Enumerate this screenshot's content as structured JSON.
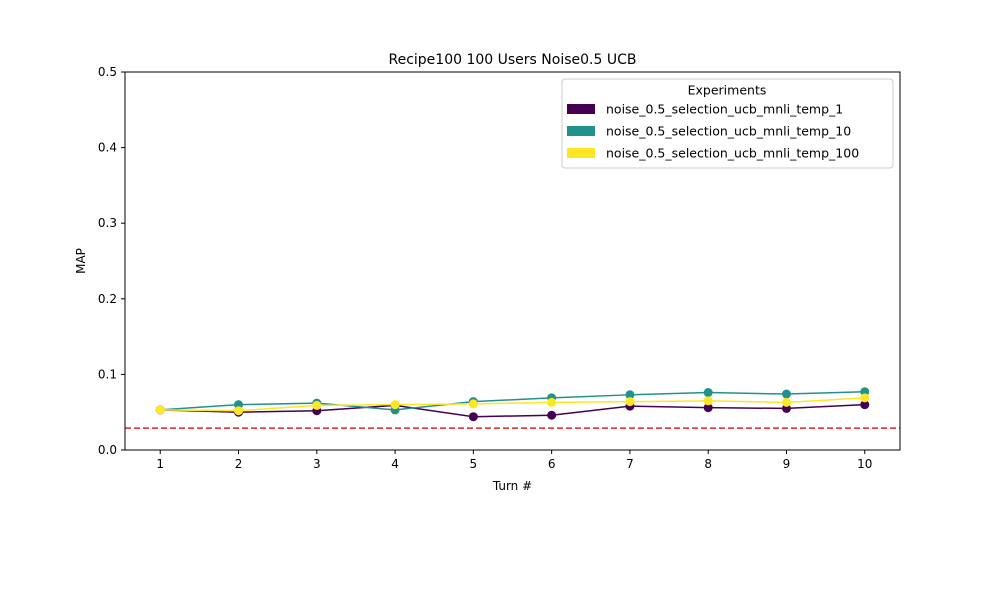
{
  "chart_data": {
    "type": "line",
    "title": "Recipe100 100 Users Noise0.5 UCB",
    "xlabel": "Turn #",
    "ylabel": "MAP",
    "x": [
      1,
      2,
      3,
      4,
      5,
      6,
      7,
      8,
      9,
      10
    ],
    "xticks": [
      "1",
      "2",
      "3",
      "4",
      "5",
      "6",
      "7",
      "8",
      "9",
      "10"
    ],
    "xlim": [
      0.55,
      10.45
    ],
    "ylim": [
      0.0,
      0.5
    ],
    "yticks": [
      "0.0",
      "0.1",
      "0.2",
      "0.3",
      "0.4",
      "0.5"
    ],
    "grid": false,
    "legend": {
      "title": "Experiments",
      "placement": "upper-right"
    },
    "baseline": {
      "value": 0.029,
      "color": "#d62728",
      "style": "dashed"
    },
    "series": [
      {
        "name": "noise_0.5_selection_ucb_mnli_temp_1",
        "color": "#440154",
        "values": [
          0.053,
          0.05,
          0.052,
          0.059,
          0.044,
          0.046,
          0.058,
          0.056,
          0.055,
          0.06
        ]
      },
      {
        "name": "noise_0.5_selection_ucb_mnli_temp_10",
        "color": "#21918c",
        "values": [
          0.053,
          0.06,
          0.062,
          0.053,
          0.064,
          0.069,
          0.073,
          0.076,
          0.074,
          0.077
        ]
      },
      {
        "name": "noise_0.5_selection_ucb_mnli_temp_100",
        "color": "#fde725",
        "values": [
          0.053,
          0.052,
          0.059,
          0.06,
          0.061,
          0.063,
          0.064,
          0.065,
          0.063,
          0.069
        ]
      }
    ]
  }
}
